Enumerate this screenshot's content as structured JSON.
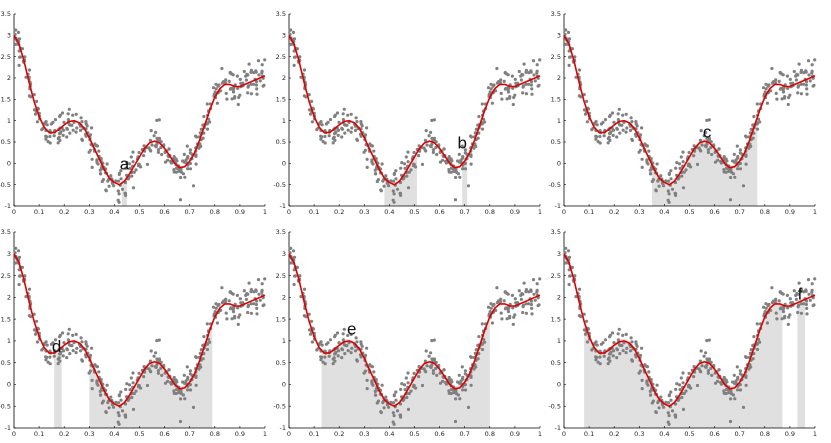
{
  "chart_data": {
    "type": "scatter",
    "xlim": [
      0,
      1
    ],
    "ylim": [
      -1,
      3.5
    ],
    "x_ticks": [
      "0",
      "0.1",
      "0.2",
      "0.3",
      "0.4",
      "0.5",
      "0.6",
      "0.7",
      "0.8",
      "0.9",
      "1"
    ],
    "y_ticks": [
      "-1",
      "-0.5",
      "0",
      "0.5",
      "1",
      "1.5",
      "2",
      "2.5",
      "3",
      "3.5"
    ],
    "grid": false,
    "series": [
      {
        "kind": "fitted-curve",
        "color": "#dd0000",
        "x": [
          0.0,
          0.02,
          0.04,
          0.06,
          0.08,
          0.1,
          0.12,
          0.14,
          0.16,
          0.18,
          0.2,
          0.22,
          0.24,
          0.26,
          0.28,
          0.3,
          0.32,
          0.34,
          0.36,
          0.38,
          0.4,
          0.42,
          0.44,
          0.46,
          0.48,
          0.5,
          0.52,
          0.54,
          0.56,
          0.58,
          0.6,
          0.62,
          0.64,
          0.66,
          0.68,
          0.7,
          0.72,
          0.74,
          0.76,
          0.78,
          0.8,
          0.82,
          0.84,
          0.86,
          0.88,
          0.9,
          0.92,
          0.94,
          0.96,
          0.98,
          1.0
        ],
        "y": [
          3.0,
          2.8,
          2.4,
          1.9,
          1.45,
          1.1,
          0.85,
          0.72,
          0.72,
          0.8,
          0.9,
          0.98,
          1.0,
          0.95,
          0.82,
          0.6,
          0.35,
          0.1,
          -0.15,
          -0.35,
          -0.45,
          -0.5,
          -0.42,
          -0.25,
          -0.05,
          0.15,
          0.35,
          0.48,
          0.52,
          0.48,
          0.35,
          0.18,
          0.0,
          -0.1,
          -0.08,
          0.05,
          0.25,
          0.55,
          0.9,
          1.25,
          1.55,
          1.75,
          1.85,
          1.85,
          1.8,
          1.8,
          1.85,
          1.9,
          1.95,
          2.0,
          2.05
        ]
      },
      {
        "kind": "noisy-samples",
        "color": "#808080",
        "note_count": 420,
        "noise_sd": 0.18
      }
    ],
    "panels": [
      {
        "label": "a",
        "highlight": [
          [
            0.43,
            0.45
          ]
        ]
      },
      {
        "label": "b",
        "highlight": [
          [
            0.38,
            0.51
          ],
          [
            0.69,
            0.71
          ]
        ]
      },
      {
        "label": "c",
        "highlight": [
          [
            0.35,
            0.77
          ]
        ]
      },
      {
        "label": "d",
        "highlight": [
          [
            0.16,
            0.19
          ],
          [
            0.3,
            0.79
          ]
        ]
      },
      {
        "label": "e",
        "highlight": [
          [
            0.13,
            0.8
          ]
        ]
      },
      {
        "label": "f",
        "highlight": [
          [
            0.08,
            0.87
          ],
          [
            0.93,
            0.96
          ]
        ]
      }
    ]
  }
}
